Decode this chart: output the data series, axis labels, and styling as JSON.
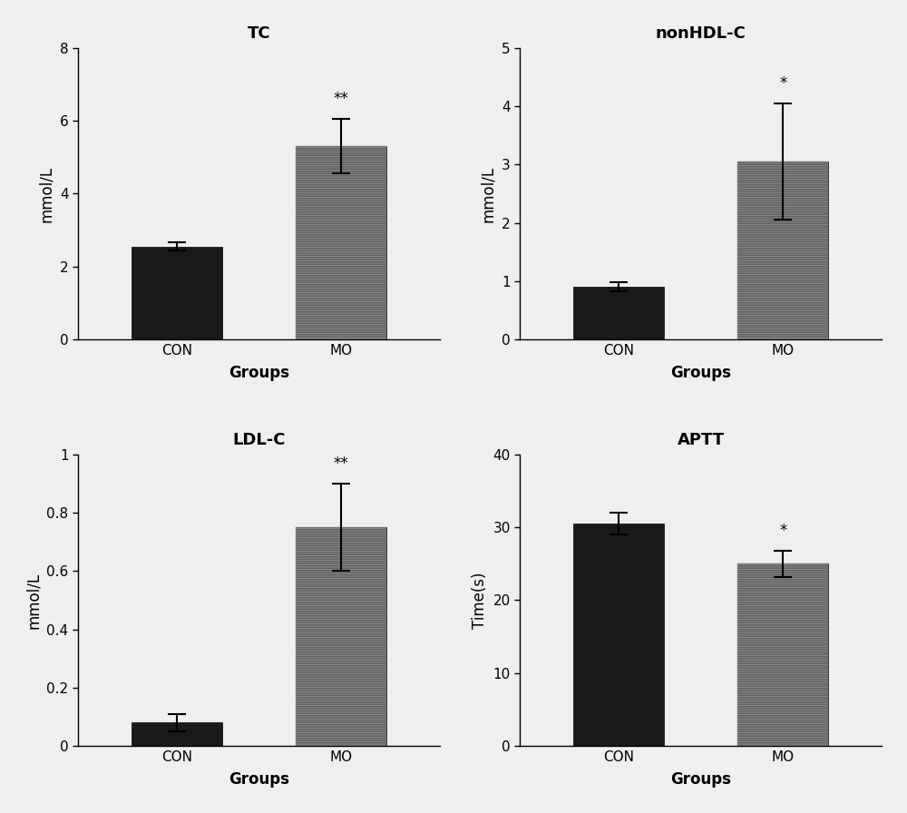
{
  "panels": [
    {
      "title": "TC",
      "ylabel": "mmol/L",
      "xlabel": "Groups",
      "categories": [
        "CON",
        "MO"
      ],
      "values": [
        2.55,
        5.3
      ],
      "errors": [
        0.12,
        0.75
      ],
      "colors": [
        "#1a1a1a",
        "#d0d0d0"
      ],
      "ylim": [
        0,
        8
      ],
      "yticks": [
        0,
        2,
        4,
        6,
        8
      ],
      "significance": [
        "",
        "**"
      ],
      "sig_idx": [
        1
      ]
    },
    {
      "title": "nonHDL-C",
      "ylabel": "mmol/L",
      "xlabel": "Groups",
      "categories": [
        "CON",
        "MO"
      ],
      "values": [
        0.9,
        3.05
      ],
      "errors": [
        0.08,
        1.0
      ],
      "colors": [
        "#1a1a1a",
        "#d0d0d0"
      ],
      "ylim": [
        0,
        5
      ],
      "yticks": [
        0,
        1,
        2,
        3,
        4,
        5
      ],
      "significance": [
        "",
        "*"
      ],
      "sig_idx": [
        1
      ]
    },
    {
      "title": "LDL-C",
      "ylabel": "mmol/L",
      "xlabel": "Groups",
      "categories": [
        "CON",
        "MO"
      ],
      "values": [
        0.08,
        0.75
      ],
      "errors": [
        0.03,
        0.15
      ],
      "colors": [
        "#1a1a1a",
        "#d0d0d0"
      ],
      "ylim": [
        0,
        1.0
      ],
      "yticks": [
        0.0,
        0.2,
        0.4,
        0.6,
        0.8,
        1.0
      ],
      "significance": [
        "",
        "**"
      ],
      "sig_idx": [
        1
      ]
    },
    {
      "title": "APTT",
      "ylabel": "Time(s)",
      "xlabel": "Groups",
      "categories": [
        "CON",
        "MO"
      ],
      "values": [
        30.5,
        25.0
      ],
      "errors": [
        1.5,
        1.8
      ],
      "colors": [
        "#1a1a1a",
        "#d0d0d0"
      ],
      "ylim": [
        0,
        40
      ],
      "yticks": [
        0,
        10,
        20,
        30,
        40
      ],
      "significance": [
        "",
        "*"
      ],
      "sig_idx": [
        1
      ]
    }
  ],
  "fig_width": 10.0,
  "fig_height": 8.96,
  "title_fontsize": 13,
  "label_fontsize": 12,
  "tick_fontsize": 11,
  "sig_fontsize": 12,
  "bar_width": 0.55,
  "capsize": 7
}
